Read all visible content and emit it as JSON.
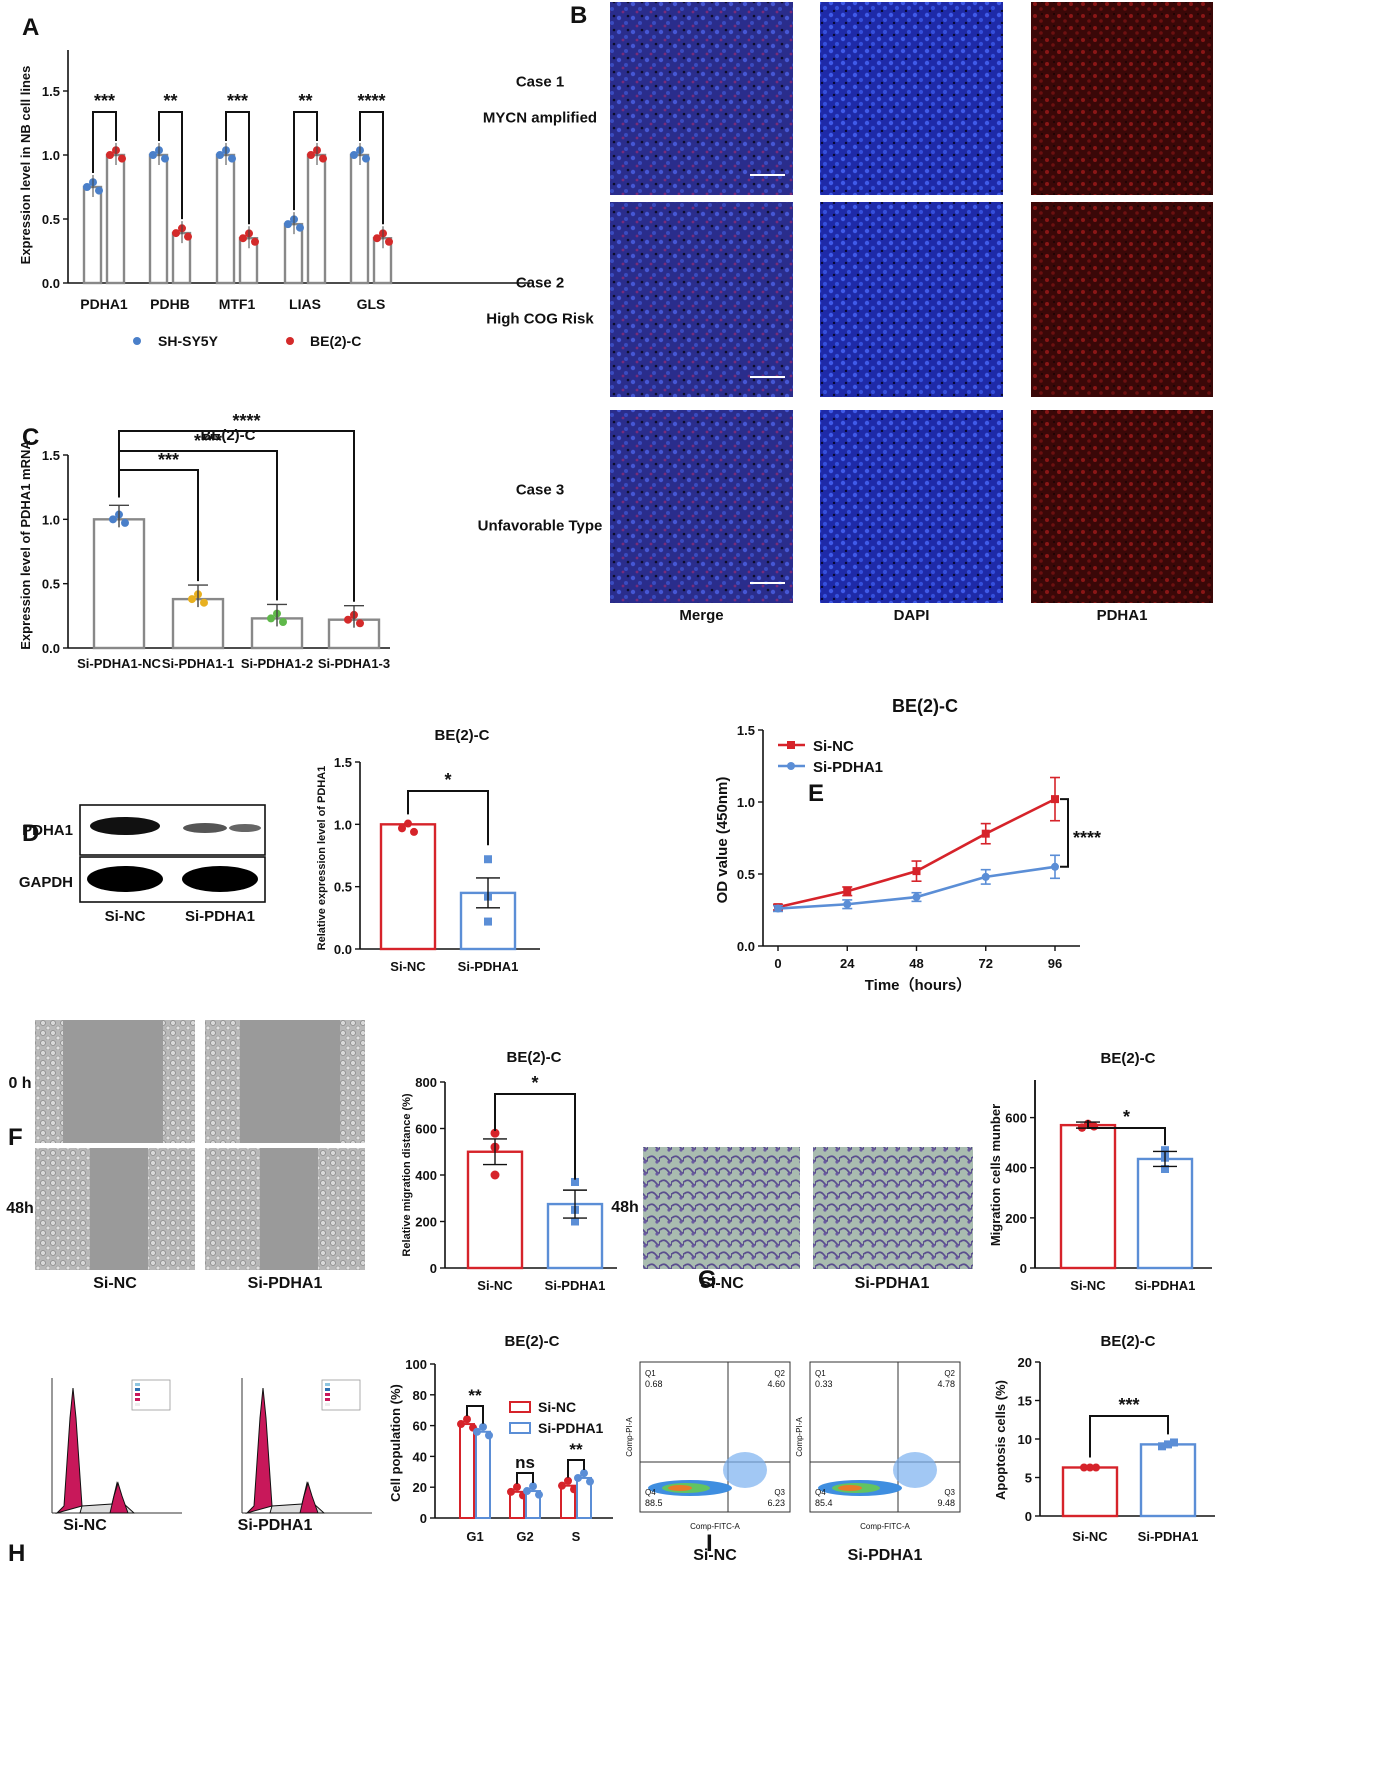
{
  "panels": {
    "A": "A",
    "B": "B",
    "C": "C",
    "D": "D",
    "E": "E",
    "F": "F",
    "G": "G",
    "H": "H",
    "I": "I"
  },
  "colors": {
    "sh_sy5y": "#4a7fc9",
    "be2c": "#d42a2a",
    "si_nc": "#d6232a",
    "si_pdha1": "#5b8ed6",
    "bar_gray": "#888888",
    "yellow": "#e8b020",
    "green": "#5fb84a"
  },
  "B": {
    "rows": [
      {
        "case": "Case 1",
        "desc": "MYCN amplified"
      },
      {
        "case": "Case 2",
        "desc": "High COG Risk"
      },
      {
        "case": "Case 3",
        "desc": "Unfavorable Type"
      }
    ],
    "cols": [
      "Merge",
      "DAPI",
      "PDHA1"
    ]
  },
  "D": {
    "blot_rows": [
      "PDHA1",
      "GAPDH"
    ],
    "blot_cols": [
      "Si-NC",
      "Si-PDHA1"
    ]
  },
  "F": {
    "row_labels": [
      "0 h",
      "48h"
    ],
    "col_labels": [
      "Si-NC",
      "Si-PDHA1"
    ]
  },
  "G": {
    "row_label": "48h",
    "col_labels": [
      "Si-NC",
      "Si-PDHA1"
    ]
  },
  "H": {
    "labels": [
      "Si-NC",
      "Si-PDHA1"
    ]
  },
  "I": {
    "labels": [
      "Si-NC",
      "Si-PDHA1"
    ],
    "x_axis": "Comp-FITC-A",
    "y_axis": "Comp-PI-A",
    "quadrants": [
      {
        "Q1": "0.68",
        "Q2": "4.60",
        "Q3": "6.23",
        "Q4": "88.5"
      },
      {
        "Q1": "0.33",
        "Q2": "4.78",
        "Q3": "9.48",
        "Q4": "85.4"
      }
    ]
  },
  "chart_data": [
    {
      "id": "A",
      "type": "bar",
      "ylabel": "Expression level in NB cell lines",
      "ylim": [
        0,
        1.5
      ],
      "yticks": [
        "0.0",
        "0.5",
        "1.0",
        "1.5"
      ],
      "categories": [
        "PDHA1",
        "PDHB",
        "MTF1",
        "LIAS",
        "GLS"
      ],
      "series": [
        {
          "name": "SH-SY5Y",
          "values": [
            0.75,
            1.0,
            1.0,
            0.46,
            1.0
          ]
        },
        {
          "name": "BE(2)-C",
          "values": [
            1.0,
            0.39,
            0.35,
            1.0,
            0.35
          ]
        }
      ],
      "significance": [
        "***",
        "**",
        "***",
        "**",
        "****"
      ],
      "legend": "bottom"
    },
    {
      "id": "C",
      "type": "bar",
      "title": "BE(2)-C",
      "ylabel": "Expression level of PDHA1 mRNA",
      "ylim": [
        0,
        1.5
      ],
      "yticks": [
        "0.0",
        "0.5",
        "1.0",
        "1.5"
      ],
      "categories": [
        "Si-PDHA1-NC",
        "Si-PDHA1-1",
        "Si-PDHA1-2",
        "Si-PDHA1-3"
      ],
      "values": [
        1.0,
        0.38,
        0.23,
        0.22
      ],
      "significance": [
        "***",
        "****",
        "****"
      ]
    },
    {
      "id": "D",
      "type": "bar",
      "title": "BE(2)-C",
      "ylabel": "Relative expression level of PDHA1",
      "ylim": [
        0,
        1.5
      ],
      "yticks": [
        "0.0",
        "0.5",
        "1.0",
        "1.5"
      ],
      "categories": [
        "Si-NC",
        "Si-PDHA1"
      ],
      "values": [
        1.0,
        0.45
      ],
      "significance": "*"
    },
    {
      "id": "E",
      "type": "line",
      "title": "BE(2)-C",
      "xlabel": "Time（hours）",
      "ylabel": "OD value (450nm)",
      "x": [
        0,
        24,
        48,
        72,
        96
      ],
      "xticks": [
        "0",
        "24",
        "48",
        "72",
        "96"
      ],
      "ylim": [
        0,
        1.5
      ],
      "yticks": [
        "0.0",
        "0.5",
        "1.0",
        "1.5"
      ],
      "series": [
        {
          "name": "Si-NC",
          "values": [
            0.27,
            0.38,
            0.52,
            0.78,
            1.02
          ]
        },
        {
          "name": "Si-PDHA1",
          "values": [
            0.26,
            0.29,
            0.34,
            0.48,
            0.55
          ]
        }
      ],
      "significance": "****",
      "legend": "top-left"
    },
    {
      "id": "F",
      "type": "bar",
      "title": "BE(2)-C",
      "ylabel": "Relative migration distance (%)",
      "ylim": [
        0,
        800
      ],
      "yticks": [
        "0",
        "200",
        "400",
        "600",
        "800"
      ],
      "categories": [
        "Si-NC",
        "Si-PDHA1"
      ],
      "values": [
        500,
        275
      ],
      "significance": "*"
    },
    {
      "id": "G",
      "type": "bar",
      "title": "BE(2)-C",
      "ylabel": "Migration cells munber",
      "ylim": [
        0,
        750
      ],
      "yticks": [
        "0",
        "200",
        "400",
        "600"
      ],
      "categories": [
        "Si-NC",
        "Si-PDHA1"
      ],
      "values": [
        570,
        435
      ],
      "significance": "*"
    },
    {
      "id": "H",
      "type": "bar",
      "title": "BE(2)-C",
      "ylabel": "Cell population (%)",
      "ylim": [
        0,
        100
      ],
      "yticks": [
        "0",
        "20",
        "40",
        "60",
        "80",
        "100"
      ],
      "categories": [
        "G1",
        "G2",
        "S"
      ],
      "series": [
        {
          "name": "Si-NC",
          "values": [
            61,
            17,
            21
          ]
        },
        {
          "name": "Si-PDHA1",
          "values": [
            56,
            17.5,
            26
          ]
        }
      ],
      "significance": [
        "**",
        "ns",
        "**"
      ],
      "legend": "right"
    },
    {
      "id": "I",
      "type": "bar",
      "title": "BE(2)-C",
      "ylabel": "Apoptosis cells (%)",
      "ylim": [
        0,
        20
      ],
      "yticks": [
        "0",
        "5",
        "10",
        "15",
        "20"
      ],
      "categories": [
        "Si-NC",
        "Si-PDHA1"
      ],
      "values": [
        6.3,
        9.3
      ],
      "significance": "***"
    }
  ]
}
